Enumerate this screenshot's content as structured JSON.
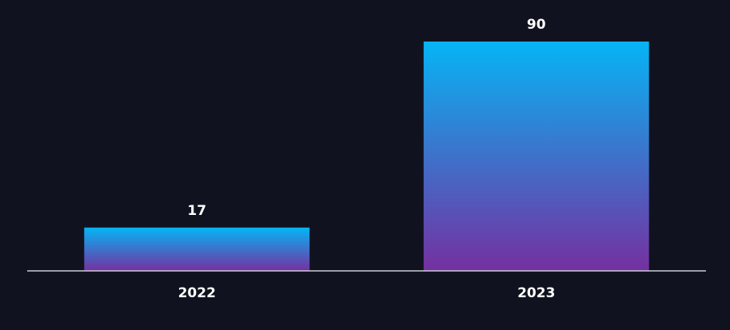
{
  "chart_data": {
    "type": "bar",
    "categories": [
      "2022",
      "2023"
    ],
    "values": [
      17,
      90
    ],
    "color": [
      "#06b4f5",
      "#7530a0"
    ]
  }
}
